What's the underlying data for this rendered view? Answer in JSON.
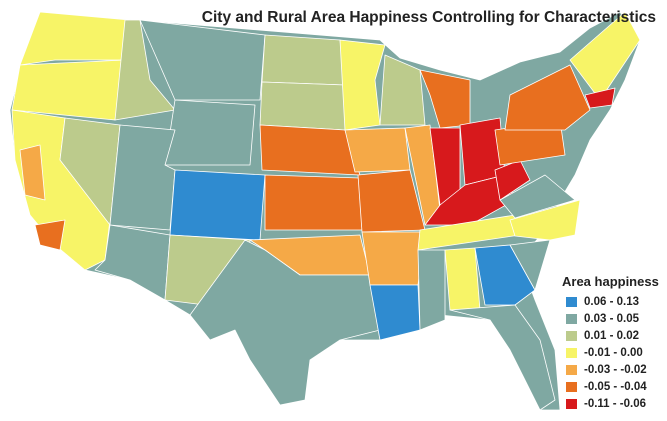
{
  "title": "City and Rural Area Happiness Controlling for Characteristics",
  "legend": {
    "title": "Area happiness",
    "items": [
      {
        "label": "0.06 - 0.13",
        "color": "#2f8bd0"
      },
      {
        "label": "0.03 - 0.05",
        "color": "#7fa8a2"
      },
      {
        "label": "0.01 - 0.02",
        "color": "#bccb8c"
      },
      {
        "label": "-0.01 - 0.00",
        "color": "#f7f467"
      },
      {
        "label": "-0.03 - -0.02",
        "color": "#f5a947"
      },
      {
        "label": "-0.05 - -0.04",
        "color": "#e86f1f"
      },
      {
        "label": "-0.11 - -0.06",
        "color": "#d7191c"
      }
    ]
  }
}
